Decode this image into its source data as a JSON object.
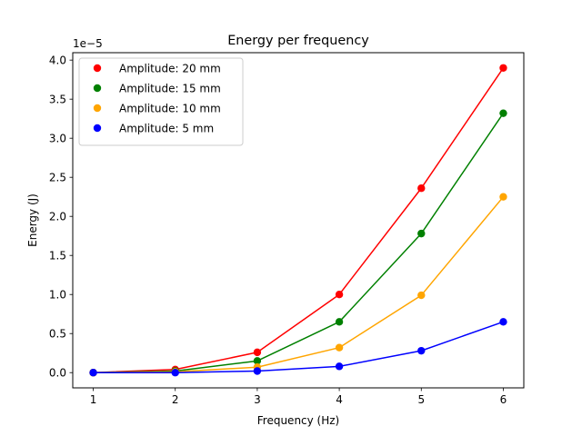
{
  "chart_data": {
    "type": "line",
    "title": "Energy per frequency",
    "xlabel": "Frequency (Hz)",
    "ylabel": "Energy (J)",
    "y_offset_label": "1e−5",
    "x": [
      1,
      2,
      3,
      4,
      5,
      6
    ],
    "x_ticks": [
      "1",
      "2",
      "3",
      "4",
      "5",
      "6"
    ],
    "y_ticks": [
      "0.0",
      "0.5",
      "1.0",
      "1.5",
      "2.0",
      "2.5",
      "3.0",
      "3.5",
      "4.0"
    ],
    "y_tick_values": [
      0,
      0.5,
      1.0,
      1.5,
      2.0,
      2.5,
      3.0,
      3.5,
      4.0
    ],
    "xlim": [
      0.75,
      6.25
    ],
    "ylim": [
      -0.195,
      4.095
    ],
    "y_scale_note": "values in units of 1e-5 J",
    "grid": false,
    "legend_position": "top-left",
    "series": [
      {
        "name": "Amplitude: 20 mm",
        "color": "#ff0000",
        "values": [
          0.0,
          0.04,
          0.26,
          1.0,
          2.36,
          3.9
        ]
      },
      {
        "name": "Amplitude: 15 mm",
        "color": "#008000",
        "values": [
          0.0,
          0.02,
          0.15,
          0.65,
          1.78,
          3.32
        ]
      },
      {
        "name": "Amplitude: 10 mm",
        "color": "#ffa500",
        "values": [
          0.0,
          0.01,
          0.07,
          0.32,
          0.99,
          2.25
        ]
      },
      {
        "name": "Amplitude: 5 mm",
        "color": "#0000ff",
        "values": [
          0.0,
          0.0,
          0.02,
          0.08,
          0.28,
          0.65
        ]
      }
    ]
  }
}
